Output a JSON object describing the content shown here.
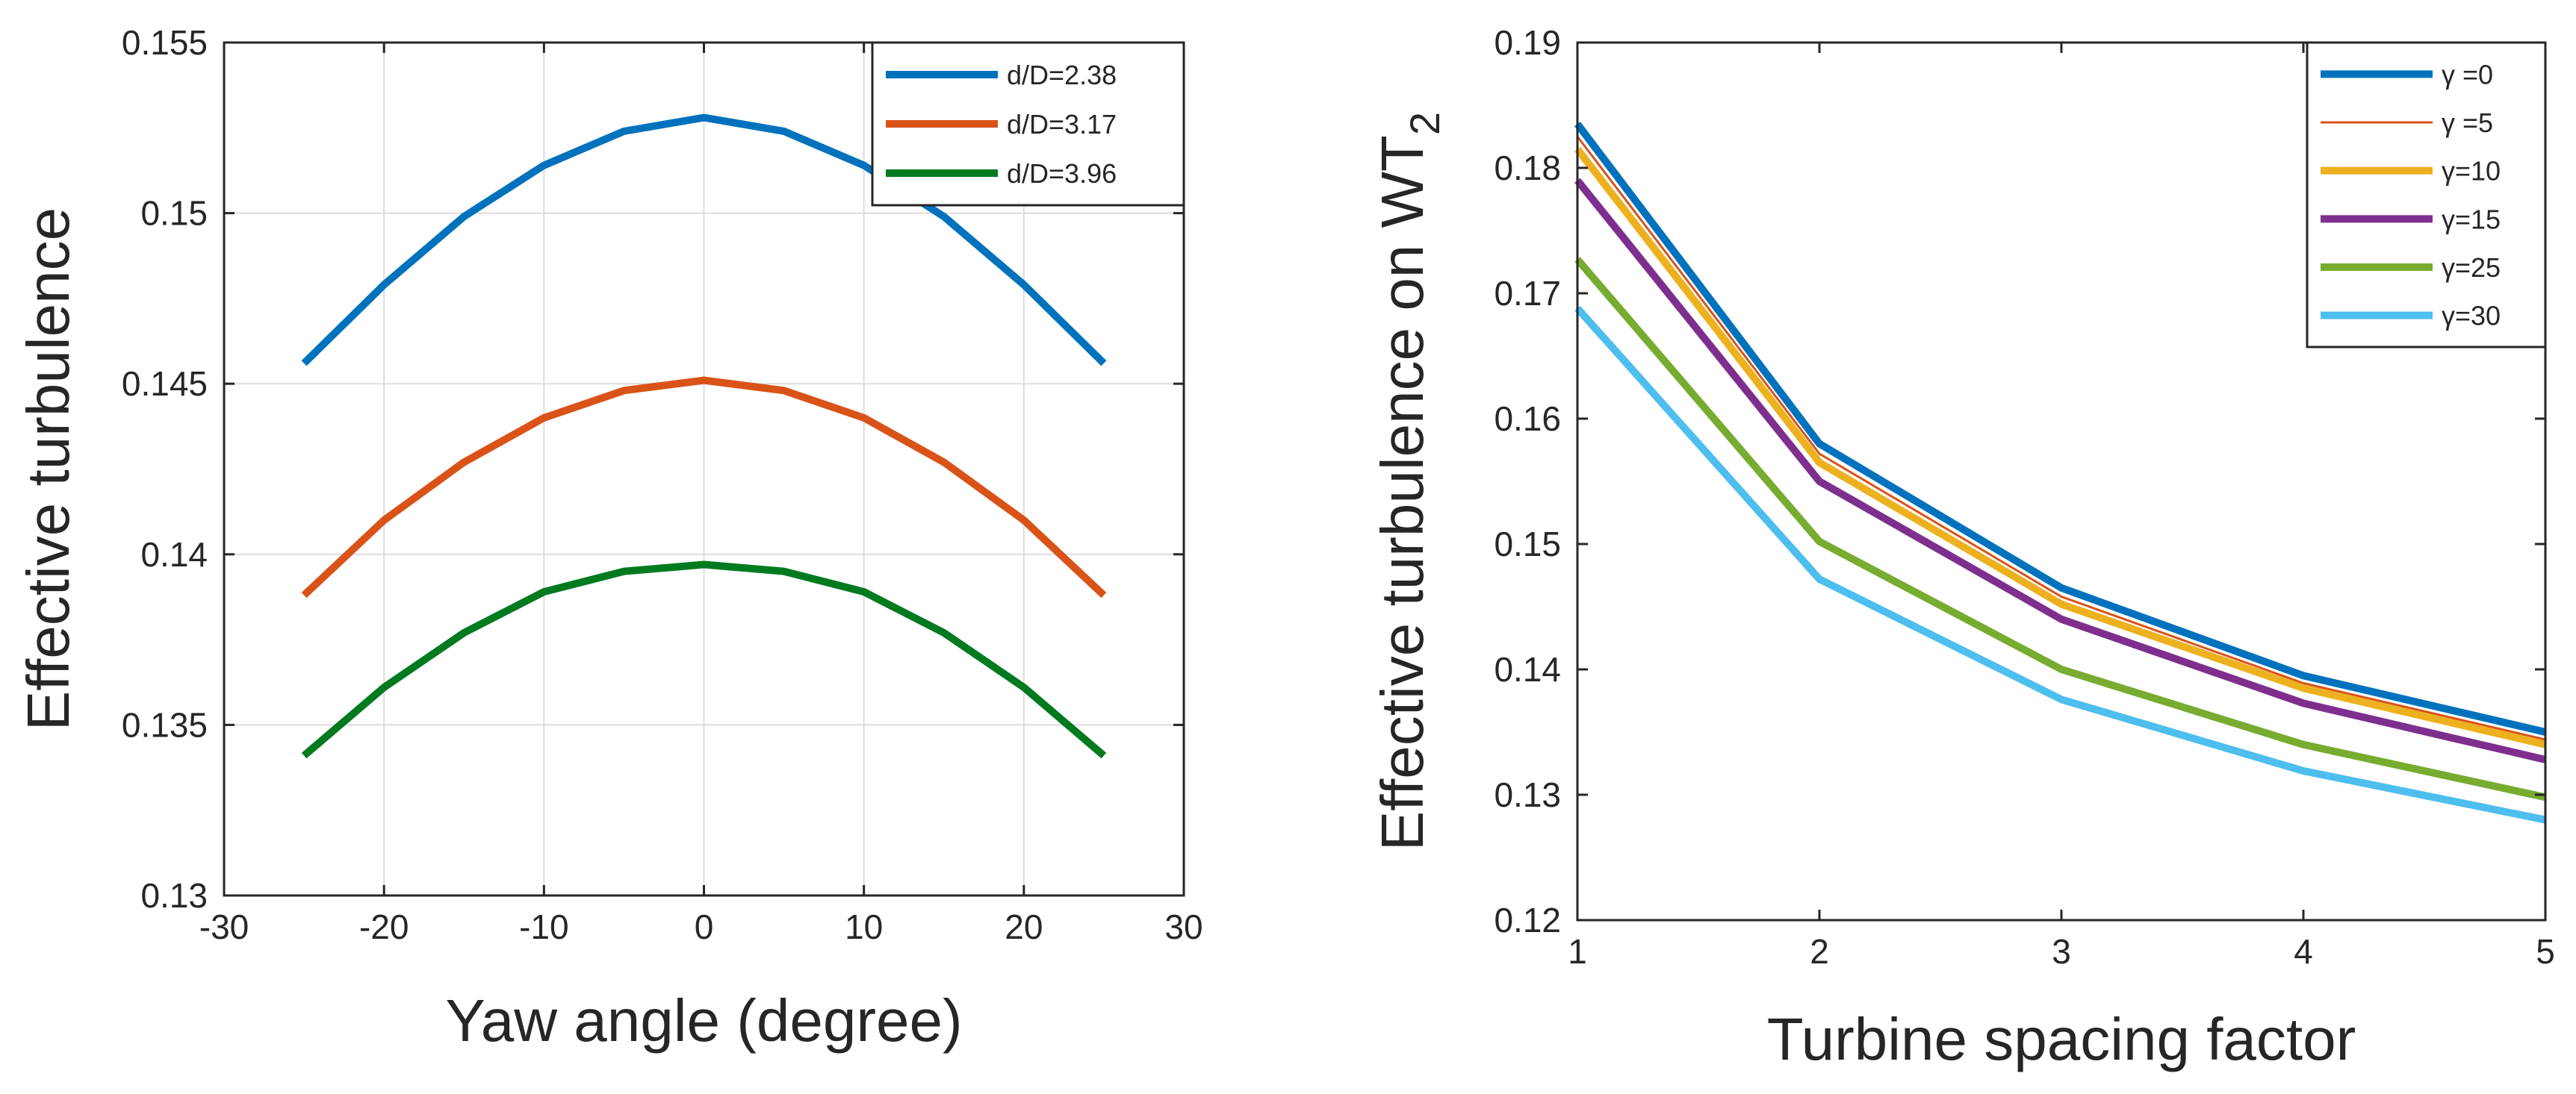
{
  "chart_data": [
    {
      "type": "line",
      "xlabel": "Yaw angle (degree)",
      "ylabel": "Effective turbulence",
      "xlim": [
        -30,
        30
      ],
      "ylim": [
        0.13,
        0.155
      ],
      "xticks": [
        -30,
        -20,
        -10,
        0,
        10,
        20,
        30
      ],
      "yticks": [
        0.13,
        0.135,
        0.14,
        0.145,
        0.15,
        0.155
      ],
      "xtick_labels": [
        "-30",
        "-20",
        "-10",
        "0",
        "10",
        "20",
        "30"
      ],
      "ytick_labels": [
        "0.13",
        "0.135",
        "0.14",
        "0.145",
        "0.15",
        "0.155"
      ],
      "grid": true,
      "legend_position": "top-right",
      "series": [
        {
          "name": "d/D=2.38",
          "color": "#0072BD",
          "x": [
            -25,
            -20,
            -15,
            -10,
            -5,
            0,
            5,
            10,
            15,
            20,
            25
          ],
          "y": [
            0.1456,
            0.1479,
            0.1499,
            0.1514,
            0.1524,
            0.1528,
            0.1524,
            0.1514,
            0.1499,
            0.1479,
            0.1456
          ]
        },
        {
          "name": "d/D=3.17",
          "color": "#D95319",
          "x": [
            -25,
            -20,
            -15,
            -10,
            -5,
            0,
            5,
            10,
            15,
            20,
            25
          ],
          "y": [
            0.1388,
            0.141,
            0.1427,
            0.144,
            0.1448,
            0.1451,
            0.1448,
            0.144,
            0.1427,
            0.141,
            0.1388
          ]
        },
        {
          "name": "d/D=3.96",
          "color": "#007A1F",
          "x": [
            -25,
            -20,
            -15,
            -10,
            -5,
            0,
            5,
            10,
            15,
            20,
            25
          ],
          "y": [
            0.1341,
            0.1361,
            0.1377,
            0.1389,
            0.1395,
            0.1397,
            0.1395,
            0.1389,
            0.1377,
            0.1361,
            0.1341
          ]
        }
      ]
    },
    {
      "type": "line",
      "xlabel": "Turbine spacing factor",
      "ylabel": "Effective turbulence on WT",
      "ylabel_subscript": "2",
      "xlim": [
        1,
        5
      ],
      "ylim": [
        0.12,
        0.19
      ],
      "xticks": [
        1,
        2,
        3,
        4,
        5
      ],
      "yticks": [
        0.12,
        0.13,
        0.14,
        0.15,
        0.16,
        0.17,
        0.18,
        0.19
      ],
      "xtick_labels": [
        "1",
        "2",
        "3",
        "4",
        "5"
      ],
      "ytick_labels": [
        "0.12",
        "0.13",
        "0.14",
        "0.15",
        "0.16",
        "0.17",
        "0.18",
        "0.19"
      ],
      "grid": false,
      "legend_position": "top-right",
      "categories": [
        1,
        2,
        3,
        4,
        5
      ],
      "series": [
        {
          "name": "γ =0",
          "color": "#0072BD",
          "thin": false,
          "values": [
            0.1835,
            0.158,
            0.1465,
            0.1395,
            0.135
          ]
        },
        {
          "name": "γ =5",
          "color": "#D95319",
          "thin": true,
          "values": [
            0.1825,
            0.1572,
            0.1458,
            0.1389,
            0.1344
          ]
        },
        {
          "name": "γ=10",
          "color": "#EDB120",
          "thin": false,
          "values": [
            0.1815,
            0.1565,
            0.1452,
            0.1385,
            0.134
          ]
        },
        {
          "name": "γ=15",
          "color": "#7E2F8E",
          "thin": false,
          "values": [
            0.179,
            0.155,
            0.144,
            0.1373,
            0.1328
          ]
        },
        {
          "name": "γ=25",
          "color": "#77AC30",
          "thin": false,
          "values": [
            0.1727,
            0.1502,
            0.14,
            0.134,
            0.1298
          ]
        },
        {
          "name": "γ=30",
          "color": "#4DBEEE",
          "thin": false,
          "values": [
            0.1688,
            0.1472,
            0.1376,
            0.1319,
            0.128
          ]
        }
      ]
    }
  ]
}
